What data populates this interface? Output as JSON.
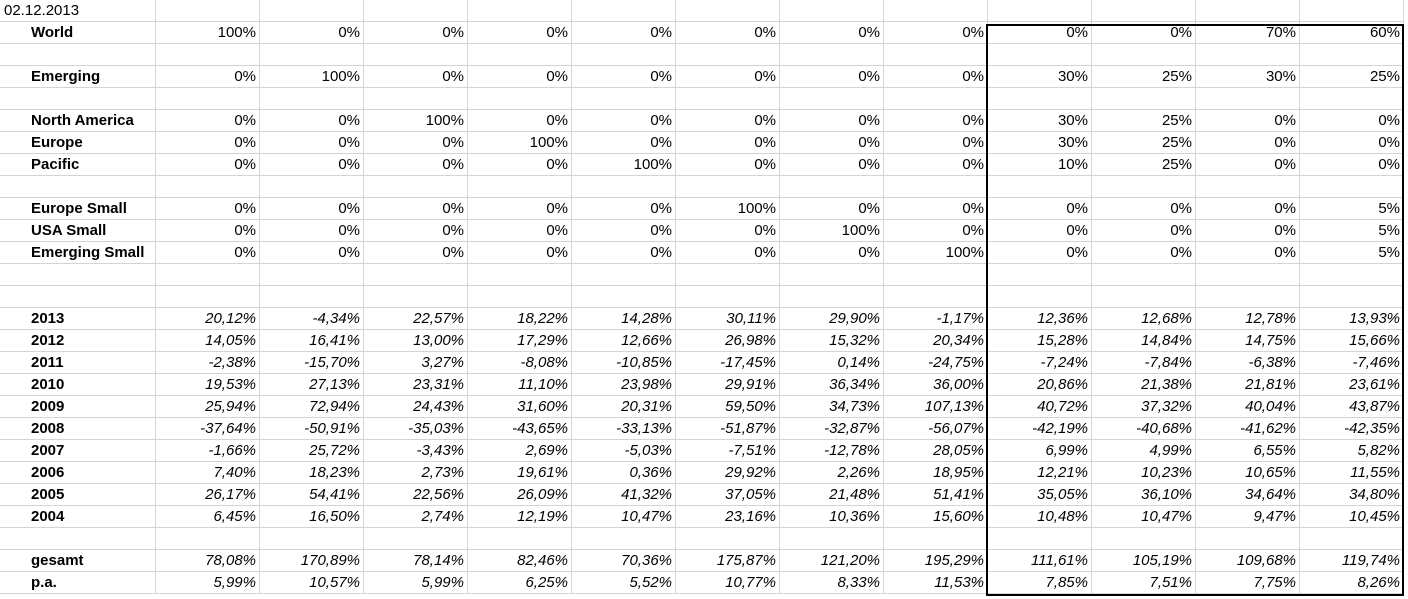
{
  "sheet": {
    "date": "02.12.2013",
    "allocation_rows": [
      {
        "row": 1,
        "label": "World",
        "values": [
          "100%",
          "0%",
          "0%",
          "0%",
          "0%",
          "0%",
          "0%",
          "0%",
          "0%",
          "0%",
          "70%",
          "60%"
        ]
      },
      {
        "row": 3,
        "label": "Emerging",
        "values": [
          "0%",
          "100%",
          "0%",
          "0%",
          "0%",
          "0%",
          "0%",
          "0%",
          "30%",
          "25%",
          "30%",
          "25%"
        ]
      },
      {
        "row": 5,
        "label": "North America",
        "values": [
          "0%",
          "0%",
          "100%",
          "0%",
          "0%",
          "0%",
          "0%",
          "0%",
          "30%",
          "25%",
          "0%",
          "0%"
        ]
      },
      {
        "row": 6,
        "label": "Europe",
        "values": [
          "0%",
          "0%",
          "0%",
          "100%",
          "0%",
          "0%",
          "0%",
          "0%",
          "30%",
          "25%",
          "0%",
          "0%"
        ]
      },
      {
        "row": 7,
        "label": "Pacific",
        "values": [
          "0%",
          "0%",
          "0%",
          "0%",
          "100%",
          "0%",
          "0%",
          "0%",
          "10%",
          "25%",
          "0%",
          "0%"
        ]
      },
      {
        "row": 9,
        "label": "Europe Small",
        "values": [
          "0%",
          "0%",
          "0%",
          "0%",
          "0%",
          "100%",
          "0%",
          "0%",
          "0%",
          "0%",
          "0%",
          "5%"
        ]
      },
      {
        "row": 10,
        "label": "USA Small",
        "values": [
          "0%",
          "0%",
          "0%",
          "0%",
          "0%",
          "0%",
          "100%",
          "0%",
          "0%",
          "0%",
          "0%",
          "5%"
        ]
      },
      {
        "row": 11,
        "label": "Emerging Small",
        "values": [
          "0%",
          "0%",
          "0%",
          "0%",
          "0%",
          "0%",
          "0%",
          "100%",
          "0%",
          "0%",
          "0%",
          "5%"
        ]
      }
    ],
    "return_rows": [
      {
        "row": 14,
        "label": "2013",
        "values": [
          "20,12%",
          "-4,34%",
          "22,57%",
          "18,22%",
          "14,28%",
          "30,11%",
          "29,90%",
          "-1,17%",
          "12,36%",
          "12,68%",
          "12,78%",
          "13,93%"
        ]
      },
      {
        "row": 15,
        "label": "2012",
        "values": [
          "14,05%",
          "16,41%",
          "13,00%",
          "17,29%",
          "12,66%",
          "26,98%",
          "15,32%",
          "20,34%",
          "15,28%",
          "14,84%",
          "14,75%",
          "15,66%"
        ]
      },
      {
        "row": 16,
        "label": "2011",
        "values": [
          "-2,38%",
          "-15,70%",
          "3,27%",
          "-8,08%",
          "-10,85%",
          "-17,45%",
          "0,14%",
          "-24,75%",
          "-7,24%",
          "-7,84%",
          "-6,38%",
          "-7,46%"
        ]
      },
      {
        "row": 17,
        "label": "2010",
        "values": [
          "19,53%",
          "27,13%",
          "23,31%",
          "11,10%",
          "23,98%",
          "29,91%",
          "36,34%",
          "36,00%",
          "20,86%",
          "21,38%",
          "21,81%",
          "23,61%"
        ]
      },
      {
        "row": 18,
        "label": "2009",
        "values": [
          "25,94%",
          "72,94%",
          "24,43%",
          "31,60%",
          "20,31%",
          "59,50%",
          "34,73%",
          "107,13%",
          "40,72%",
          "37,32%",
          "40,04%",
          "43,87%"
        ]
      },
      {
        "row": 19,
        "label": "2008",
        "values": [
          "-37,64%",
          "-50,91%",
          "-35,03%",
          "-43,65%",
          "-33,13%",
          "-51,87%",
          "-32,87%",
          "-56,07%",
          "-42,19%",
          "-40,68%",
          "-41,62%",
          "-42,35%"
        ]
      },
      {
        "row": 20,
        "label": "2007",
        "values": [
          "-1,66%",
          "25,72%",
          "-3,43%",
          "2,69%",
          "-5,03%",
          "-7,51%",
          "-12,78%",
          "28,05%",
          "6,99%",
          "4,99%",
          "6,55%",
          "5,82%"
        ]
      },
      {
        "row": 21,
        "label": "2006",
        "values": [
          "7,40%",
          "18,23%",
          "2,73%",
          "19,61%",
          "0,36%",
          "29,92%",
          "2,26%",
          "18,95%",
          "12,21%",
          "10,23%",
          "10,65%",
          "11,55%"
        ]
      },
      {
        "row": 22,
        "label": "2005",
        "values": [
          "26,17%",
          "54,41%",
          "22,56%",
          "26,09%",
          "41,32%",
          "37,05%",
          "21,48%",
          "51,41%",
          "35,05%",
          "36,10%",
          "34,64%",
          "34,80%"
        ]
      },
      {
        "row": 23,
        "label": "2004",
        "values": [
          "6,45%",
          "16,50%",
          "2,74%",
          "12,19%",
          "10,47%",
          "23,16%",
          "10,36%",
          "15,60%",
          "10,48%",
          "10,47%",
          "9,47%",
          "10,45%"
        ]
      }
    ],
    "summary_rows": [
      {
        "row": 25,
        "label": "gesamt",
        "values": [
          "78,08%",
          "170,89%",
          "78,14%",
          "82,46%",
          "70,36%",
          "175,87%",
          "121,20%",
          "195,29%",
          "111,61%",
          "105,19%",
          "109,68%",
          "119,74%"
        ]
      },
      {
        "row": 26,
        "label": "p.a.",
        "values": [
          "5,99%",
          "10,57%",
          "5,99%",
          "6,25%",
          "5,52%",
          "10,77%",
          "8,33%",
          "11,53%",
          "7,85%",
          "7,51%",
          "7,75%",
          "8,26%"
        ]
      }
    ],
    "colors": {
      "gridline": "#d4d4d4",
      "highlight_border": "#000000"
    }
  }
}
